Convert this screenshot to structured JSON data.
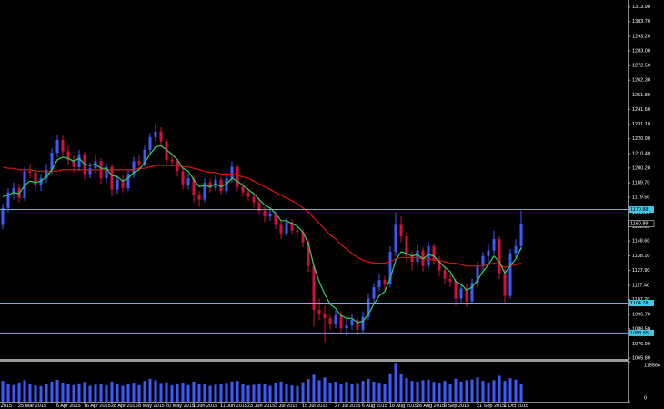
{
  "chart_data": {
    "type": "candlestick",
    "up_color": "#3b5bff",
    "down_color": "#d3103c",
    "ylim": [
      1065.3,
      1318.9
    ],
    "yticks": [
      {
        "value": 1313.9,
        "label": "1313.90"
      },
      {
        "value": 1303.7,
        "label": "1303.70"
      },
      {
        "value": 1293.2,
        "label": "1293.20"
      },
      {
        "value": 1283,
        "label": "1283.00"
      },
      {
        "value": 1272.5,
        "label": "1272.50"
      },
      {
        "value": 1262.3,
        "label": "1262.30"
      },
      {
        "value": 1251.8,
        "label": "1251.80"
      },
      {
        "value": 1241.6,
        "label": "1241.60"
      },
      {
        "value": 1231.1,
        "label": "1231.10"
      },
      {
        "value": 1220.9,
        "label": "1220.90"
      },
      {
        "value": 1210.4,
        "label": "1210.40"
      },
      {
        "value": 1200.2,
        "label": "1200.20"
      },
      {
        "value": 1189.7,
        "label": "1189.70"
      },
      {
        "value": 1179.5,
        "label": "1179.50"
      },
      {
        "value": 1169,
        "label": "1169.00"
      },
      {
        "value": 1158.8,
        "label": "1158.80"
      },
      {
        "value": 1148.6,
        "label": "1148.60"
      },
      {
        "value": 1138.1,
        "label": "1138.10"
      },
      {
        "value": 1127.9,
        "label": "1127.90"
      },
      {
        "value": 1117.4,
        "label": "1117.40"
      },
      {
        "value": 1107.2,
        "label": "1107.20"
      },
      {
        "value": 1096.7,
        "label": "1096.70"
      },
      {
        "value": 1086.5,
        "label": "1086.50"
      },
      {
        "value": 1076,
        "label": "1076.00"
      },
      {
        "value": 1065.8,
        "label": "1065.80"
      }
    ],
    "levels": [
      1170.88,
      1104.78,
      1083.65
    ],
    "levels_color": "#3fc8e8",
    "categories": [
      "16 Mar 2015",
      null,
      null,
      "25 Mar 2015",
      null,
      null,
      null,
      null,
      null,
      null,
      "6 Apr 2015",
      null,
      null,
      null,
      null,
      "16 Apr 2015",
      null,
      null,
      null,
      null,
      "28 Apr 2015",
      null,
      null,
      null,
      null,
      "8 May 2015",
      null,
      null,
      null,
      null,
      "20 May 2015",
      null,
      null,
      null,
      null,
      "1 Jun 2015",
      null,
      null,
      null,
      null,
      "11 Jun 2015",
      null,
      null,
      null,
      null,
      "23 Jun 2015",
      null,
      null,
      null,
      null,
      "3 Jul 2015",
      null,
      null,
      null,
      null,
      "15 Jul 2015",
      null,
      null,
      null,
      null,
      null,
      "27 Jul 2015",
      null,
      null,
      null,
      null,
      "6 Aug 2015",
      null,
      null,
      null,
      null,
      "18 Aug 2015",
      null,
      null,
      null,
      null,
      "28 Aug 2015",
      null,
      null,
      null,
      null,
      "9 Sep 2015",
      null,
      null,
      null,
      null,
      null,
      "21 Sep 2015",
      null,
      null,
      null,
      null,
      "1 Oct 2015",
      null,
      null,
      null
    ],
    "ohlc": [
      [
        1160,
        1175,
        1157,
        1172
      ],
      [
        1172,
        1186,
        1169,
        1183
      ],
      [
        1183,
        1190,
        1178,
        1186
      ],
      [
        1186,
        1189,
        1176,
        1179
      ],
      [
        1179,
        1201,
        1177,
        1198
      ],
      [
        1198,
        1203,
        1193,
        1197
      ],
      [
        1197,
        1200,
        1185,
        1188
      ],
      [
        1188,
        1196,
        1184,
        1193
      ],
      [
        1193,
        1203,
        1190,
        1199
      ],
      [
        1199,
        1214,
        1196,
        1211
      ],
      [
        1211,
        1224,
        1208,
        1220
      ],
      [
        1220,
        1223,
        1209,
        1212
      ],
      [
        1212,
        1216,
        1202,
        1206
      ],
      [
        1206,
        1209,
        1197,
        1201
      ],
      [
        1201,
        1213,
        1198,
        1210
      ],
      [
        1210,
        1212,
        1192,
        1196
      ],
      [
        1196,
        1204,
        1193,
        1200
      ],
      [
        1200,
        1209,
        1197,
        1205
      ],
      [
        1205,
        1207,
        1189,
        1193
      ],
      [
        1193,
        1204,
        1190,
        1201
      ],
      [
        1201,
        1203,
        1180,
        1185
      ],
      [
        1185,
        1195,
        1182,
        1192
      ],
      [
        1192,
        1195,
        1183,
        1186
      ],
      [
        1186,
        1199,
        1184,
        1196
      ],
      [
        1196,
        1208,
        1193,
        1205
      ],
      [
        1205,
        1209,
        1199,
        1203
      ],
      [
        1203,
        1216,
        1201,
        1213
      ],
      [
        1213,
        1225,
        1210,
        1222
      ],
      [
        1222,
        1232,
        1219,
        1226
      ],
      [
        1226,
        1229,
        1215,
        1219
      ],
      [
        1219,
        1221,
        1203,
        1206
      ],
      [
        1206,
        1210,
        1201,
        1205
      ],
      [
        1205,
        1207,
        1194,
        1198
      ],
      [
        1198,
        1201,
        1185,
        1188
      ],
      [
        1188,
        1196,
        1185,
        1193
      ],
      [
        1193,
        1195,
        1176,
        1181
      ],
      [
        1181,
        1184,
        1173,
        1178
      ],
      [
        1178,
        1193,
        1176,
        1190
      ],
      [
        1190,
        1193,
        1183,
        1186
      ],
      [
        1186,
        1195,
        1184,
        1192
      ],
      [
        1192,
        1194,
        1181,
        1184
      ],
      [
        1184,
        1197,
        1182,
        1193
      ],
      [
        1193,
        1205,
        1190,
        1201
      ],
      [
        1201,
        1203,
        1184,
        1187
      ],
      [
        1187,
        1190,
        1180,
        1183
      ],
      [
        1183,
        1186,
        1177,
        1180
      ],
      [
        1180,
        1183,
        1172,
        1176
      ],
      [
        1176,
        1179,
        1167,
        1170
      ],
      [
        1170,
        1173,
        1162,
        1166
      ],
      [
        1166,
        1172,
        1163,
        1168
      ],
      [
        1168,
        1170,
        1157,
        1160
      ],
      [
        1160,
        1163,
        1150,
        1154
      ],
      [
        1154,
        1165,
        1152,
        1162
      ],
      [
        1162,
        1164,
        1153,
        1156
      ],
      [
        1156,
        1159,
        1151,
        1155
      ],
      [
        1155,
        1157,
        1144,
        1148
      ],
      [
        1148,
        1150,
        1127,
        1131
      ],
      [
        1131,
        1133,
        1088,
        1100
      ],
      [
        1100,
        1108,
        1093,
        1097
      ],
      [
        1097,
        1103,
        1077,
        1094
      ],
      [
        1094,
        1097,
        1086,
        1090
      ],
      [
        1090,
        1100,
        1087,
        1096
      ],
      [
        1096,
        1099,
        1084,
        1087
      ],
      [
        1087,
        1095,
        1081,
        1089
      ],
      [
        1089,
        1097,
        1086,
        1093
      ],
      [
        1093,
        1095,
        1082,
        1086
      ],
      [
        1086,
        1099,
        1084,
        1095
      ],
      [
        1095,
        1111,
        1093,
        1108
      ],
      [
        1108,
        1119,
        1105,
        1116
      ],
      [
        1116,
        1125,
        1113,
        1121
      ],
      [
        1121,
        1124,
        1114,
        1118
      ],
      [
        1118,
        1145,
        1116,
        1141
      ],
      [
        1141,
        1169,
        1138,
        1160
      ],
      [
        1160,
        1166,
        1148,
        1152
      ],
      [
        1152,
        1155,
        1134,
        1138
      ],
      [
        1138,
        1141,
        1128,
        1134
      ],
      [
        1134,
        1146,
        1131,
        1142
      ],
      [
        1142,
        1144,
        1127,
        1131
      ],
      [
        1131,
        1148,
        1129,
        1145
      ],
      [
        1145,
        1147,
        1132,
        1135
      ],
      [
        1135,
        1138,
        1124,
        1128
      ],
      [
        1128,
        1131,
        1118,
        1122
      ],
      [
        1122,
        1126,
        1116,
        1120
      ],
      [
        1120,
        1122,
        1103,
        1108
      ],
      [
        1108,
        1119,
        1105,
        1115
      ],
      [
        1115,
        1118,
        1102,
        1106
      ],
      [
        1106,
        1122,
        1104,
        1119
      ],
      [
        1119,
        1134,
        1116,
        1131
      ],
      [
        1131,
        1141,
        1128,
        1138
      ],
      [
        1138,
        1146,
        1134,
        1142
      ],
      [
        1142,
        1156,
        1139,
        1150
      ],
      [
        1150,
        1152,
        1122,
        1126
      ],
      [
        1126,
        1129,
        1105,
        1110
      ],
      [
        1110,
        1143,
        1108,
        1140
      ],
      [
        1140,
        1150,
        1137,
        1145
      ],
      [
        1145,
        1170,
        1142,
        1160.89
      ]
    ],
    "ma_lines": [
      {
        "color": "#e01010",
        "values": [
          1201,
          1200,
          1200,
          1199,
          1199,
          1199,
          1198,
          1198,
          1198,
          1198,
          1198,
          1199,
          1199,
          1199,
          1199,
          1199,
          1199,
          1199,
          1199,
          1199,
          1199,
          1199,
          1199,
          1199,
          1199,
          1200,
          1200,
          1201,
          1202,
          1202,
          1202,
          1202,
          1202,
          1201,
          1201,
          1200,
          1199,
          1198,
          1197,
          1197,
          1196,
          1196,
          1196,
          1195,
          1194,
          1193,
          1191,
          1189,
          1187,
          1185,
          1183,
          1181,
          1179,
          1177,
          1175,
          1172,
          1169,
          1165,
          1161,
          1157,
          1153,
          1150,
          1146,
          1143,
          1140,
          1137,
          1135,
          1134,
          1133,
          1133,
          1133,
          1134,
          1136,
          1137,
          1137,
          1137,
          1137,
          1136,
          1136,
          1135,
          1135,
          1134,
          1133,
          1133,
          1132,
          1131,
          1131,
          1131,
          1131,
          1132,
          1133,
          1132,
          1130,
          1131,
          1132,
          1133
        ]
      },
      {
        "color": "#2fd26a",
        "values": [
          1180,
          1181,
          1183,
          1182,
          1188,
          1191,
          1190,
          1191,
          1194,
          1199,
          1206,
          1208,
          1207,
          1205,
          1207,
          1203,
          1202,
          1203,
          1200,
          1200,
          1195,
          1194,
          1191,
          1193,
          1197,
          1199,
          1204,
          1210,
          1215,
          1216,
          1213,
          1210,
          1206,
          1200,
          1198,
          1192,
          1187,
          1188,
          1187,
          1189,
          1187,
          1189,
          1193,
          1191,
          1188,
          1185,
          1182,
          1178,
          1174,
          1172,
          1168,
          1163,
          1163,
          1161,
          1159,
          1155,
          1147,
          1131,
          1120,
          1111,
          1104,
          1101,
          1096,
          1094,
          1094,
          1091,
          1092,
          1097,
          1104,
          1110,
          1113,
          1122,
          1135,
          1141,
          1140,
          1138,
          1139,
          1136,
          1139,
          1138,
          1134,
          1130,
          1127,
          1120,
          1118,
          1114,
          1116,
          1121,
          1127,
          1132,
          1138,
          1134,
          1126,
          1131,
          1136,
          1144
        ]
      }
    ],
    "volume": {
      "color": "#3b5bff",
      "ylim": [
        0,
        115568
      ],
      "yticks": [
        0,
        115568
      ],
      "values": [
        60000,
        52000,
        48000,
        55000,
        62000,
        50000,
        47000,
        45000,
        52000,
        58000,
        63000,
        55000,
        50000,
        48000,
        53000,
        57000,
        46000,
        49000,
        52000,
        47000,
        58000,
        50000,
        46000,
        51000,
        55000,
        48000,
        60000,
        66000,
        62000,
        54000,
        56000,
        47000,
        50000,
        55000,
        48000,
        58000,
        52000,
        50000,
        46000,
        49000,
        51000,
        54000,
        58000,
        60000,
        50000,
        47000,
        49000,
        53000,
        51000,
        46000,
        55000,
        58000,
        50000,
        47000,
        45000,
        56000,
        65000,
        78000,
        62000,
        70000,
        55000,
        58000,
        52000,
        57000,
        50000,
        54000,
        60000,
        66000,
        58000,
        55000,
        50000,
        82000,
        112000,
        80000,
        68000,
        60000,
        58000,
        62000,
        64000,
        57000,
        55000,
        60000,
        52000,
        66000,
        58000,
        62000,
        64000,
        70000,
        60000,
        56000,
        62000,
        75000,
        60000,
        68000,
        64000,
        52000
      ]
    }
  }
}
